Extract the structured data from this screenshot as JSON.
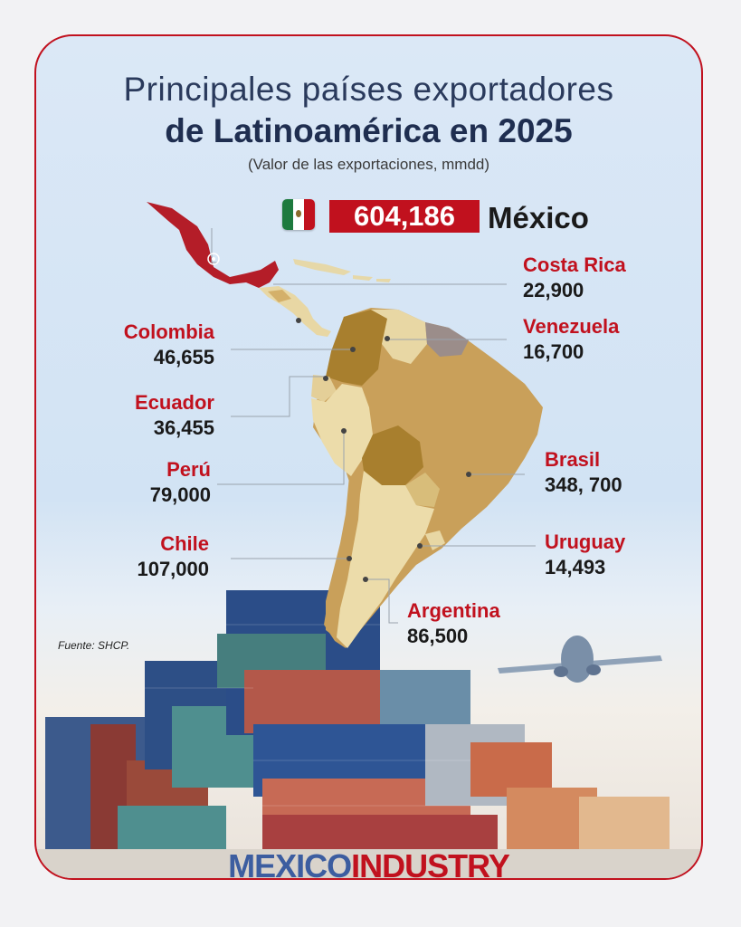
{
  "title_line1": "Principales países exportadores",
  "title_line2": "de Latinoamérica en 2025",
  "subtitle": "(Valor de las exportaciones, mmdd)",
  "highlight": {
    "value": "604,186",
    "country": "México"
  },
  "countries": [
    {
      "name": "Costa Rica",
      "value": "22,900"
    },
    {
      "name": "Venezuela",
      "value": "16,700"
    },
    {
      "name": "Colombia",
      "value": "46,655"
    },
    {
      "name": "Ecuador",
      "value": "36,455"
    },
    {
      "name": "Perú",
      "value": "79,000"
    },
    {
      "name": "Brasil",
      "value": "348, 700"
    },
    {
      "name": "Chile",
      "value": "107,000"
    },
    {
      "name": "Uruguay",
      "value": "14,493"
    },
    {
      "name": "Argentina",
      "value": "86,500"
    }
  ],
  "source": "Fuente: SHCP.",
  "logo": {
    "part1": "MEXICO",
    "part2": "INDUSTRY"
  },
  "colors": {
    "accent": "#c1111e",
    "navy": "#1f2e50",
    "logo_blue": "#3c5da0"
  }
}
